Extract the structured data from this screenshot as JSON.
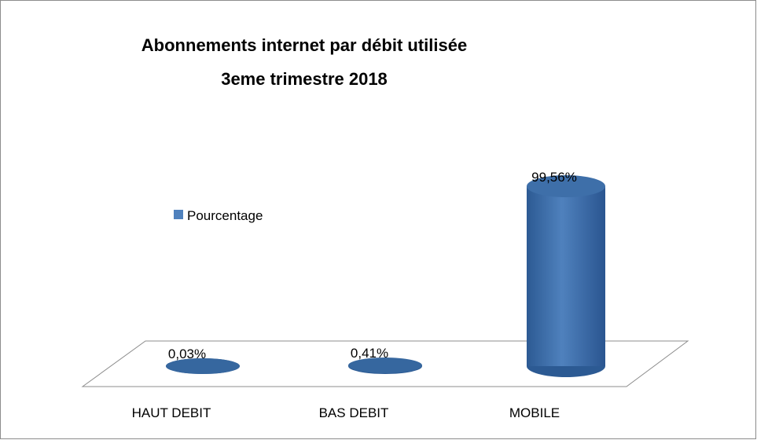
{
  "chart_data": {
    "type": "bar3d",
    "title": [
      "Abonnements internet par débit  utilisée",
      "3eme  trimestre 2018"
    ],
    "categories": [
      "HAUT DEBIT",
      "BAS DEBIT",
      "MOBILE"
    ],
    "series": [
      {
        "name": "Pourcentage",
        "color": "#4f81bd",
        "values": [
          0.03,
          0.41,
          99.56
        ],
        "value_labels": [
          "0,03%",
          "0,41%",
          "99,56%"
        ]
      }
    ],
    "ylim": [
      0,
      100
    ]
  }
}
